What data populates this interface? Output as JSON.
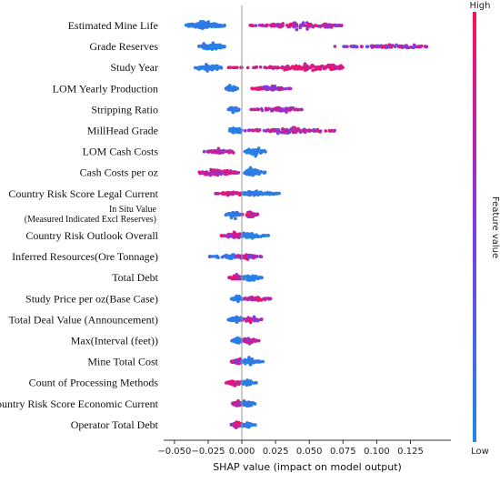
{
  "chart_data": {
    "type": "scatter",
    "subtype": "shap-beeswarm",
    "xlabel": "SHAP value (impact on model output)",
    "xlim": [
      -0.058,
      0.155
    ],
    "xticks": [
      -0.05,
      -0.025,
      0.0,
      0.025,
      0.05,
      0.075,
      0.1,
      0.125
    ],
    "xtick_labels": [
      "−0.050",
      "−0.025",
      "0.000",
      "0.025",
      "0.050",
      "0.075",
      "0.100",
      "0.125"
    ],
    "colorbar": {
      "label": "Feature value",
      "high_label": "High",
      "low_label": "Low",
      "low_color": "#1e88e5",
      "high_color": "#ff0d57"
    },
    "features": [
      {
        "name": "Estimated Mine Life",
        "clusters": [
          {
            "min": -0.042,
            "max": -0.012,
            "center": -0.028,
            "n": 110,
            "lo": 0.0,
            "hi": 0.15,
            "spread": 0.5
          },
          {
            "min": 0.005,
            "max": 0.075,
            "center": 0.045,
            "n": 120,
            "lo": 0.45,
            "hi": 1.0,
            "spread": 0.32
          }
        ]
      },
      {
        "name": "Grade Reserves",
        "clusters": [
          {
            "min": -0.032,
            "max": -0.012,
            "center": -0.022,
            "n": 80,
            "lo": 0.0,
            "hi": 0.15,
            "spread": 0.45
          },
          {
            "min": 0.065,
            "max": 0.137,
            "center": 0.115,
            "n": 90,
            "lo": 0.35,
            "hi": 1.0,
            "spread": 0.22
          }
        ]
      },
      {
        "name": "Study Year",
        "clusters": [
          {
            "min": -0.035,
            "max": -0.015,
            "center": -0.025,
            "n": 90,
            "lo": 0.0,
            "hi": 0.15,
            "spread": 0.45
          },
          {
            "min": -0.01,
            "max": 0.075,
            "center": 0.055,
            "n": 140,
            "lo": 0.7,
            "hi": 1.0,
            "spread": 0.4
          }
        ]
      },
      {
        "name": "LOM Yearly Production",
        "clusters": [
          {
            "min": -0.012,
            "max": -0.003,
            "center": -0.008,
            "n": 45,
            "lo": 0.0,
            "hi": 0.15,
            "spread": 0.4
          },
          {
            "min": 0.007,
            "max": 0.037,
            "center": 0.02,
            "n": 70,
            "lo": 0.4,
            "hi": 1.0,
            "spread": 0.3
          }
        ]
      },
      {
        "name": "Stripping Ratio",
        "clusters": [
          {
            "min": -0.01,
            "max": -0.002,
            "center": -0.006,
            "n": 45,
            "lo": 0.0,
            "hi": 0.15,
            "spread": 0.4
          },
          {
            "min": 0.005,
            "max": 0.046,
            "center": 0.03,
            "n": 70,
            "lo": 0.5,
            "hi": 1.0,
            "spread": 0.3
          }
        ]
      },
      {
        "name": "MillHead Grade",
        "clusters": [
          {
            "min": -0.01,
            "max": 0.0,
            "center": -0.005,
            "n": 50,
            "lo": 0.0,
            "hi": 0.15,
            "spread": 0.4
          },
          {
            "min": 0.002,
            "max": 0.07,
            "center": 0.035,
            "n": 120,
            "lo": 0.3,
            "hi": 1.0,
            "spread": 0.32
          }
        ]
      },
      {
        "name": "LOM Cash Costs",
        "clusters": [
          {
            "min": -0.028,
            "max": -0.006,
            "center": -0.015,
            "n": 55,
            "lo": 0.5,
            "hi": 1.0,
            "spread": 0.3
          },
          {
            "min": 0.002,
            "max": 0.018,
            "center": 0.01,
            "n": 70,
            "lo": 0.0,
            "hi": 0.15,
            "spread": 0.45
          }
        ]
      },
      {
        "name": "Cash Costs per oz",
        "clusters": [
          {
            "min": -0.033,
            "max": -0.002,
            "center": -0.018,
            "n": 80,
            "lo": 0.55,
            "hi": 1.0,
            "spread": 0.35
          },
          {
            "min": 0.002,
            "max": 0.018,
            "center": 0.008,
            "n": 75,
            "lo": 0.0,
            "hi": 0.15,
            "spread": 0.45
          }
        ]
      },
      {
        "name": "Country Risk Score Legal Current",
        "clusters": [
          {
            "min": -0.022,
            "max": 0.0,
            "center": -0.008,
            "n": 40,
            "lo": 0.7,
            "hi": 1.0,
            "spread": 0.25
          },
          {
            "min": 0.0,
            "max": 0.028,
            "center": 0.012,
            "n": 70,
            "lo": 0.0,
            "hi": 0.15,
            "spread": 0.35
          }
        ]
      },
      {
        "name": "In Situ Value (Measured Indicated Excl Reserves)",
        "label_lines": [
          "In Situ Value",
          "(Measured Indicated Excl Reserves)"
        ],
        "clusters": [
          {
            "min": -0.012,
            "max": 0.0,
            "center": -0.006,
            "n": 45,
            "lo": 0.0,
            "hi": 0.2,
            "spread": 0.45
          },
          {
            "min": 0.0,
            "max": 0.012,
            "center": 0.006,
            "n": 45,
            "lo": 0.5,
            "hi": 1.0,
            "spread": 0.45
          }
        ]
      },
      {
        "name": "Country Risk Outlook Overall",
        "clusters": [
          {
            "min": -0.016,
            "max": 0.0,
            "center": -0.005,
            "n": 55,
            "lo": 0.4,
            "hi": 1.0,
            "spread": 0.4
          },
          {
            "min": 0.0,
            "max": 0.02,
            "center": 0.006,
            "n": 60,
            "lo": 0.0,
            "hi": 0.15,
            "spread": 0.4
          }
        ]
      },
      {
        "name": "Inferred Resources(Ore Tonnage)",
        "clusters": [
          {
            "min": -0.025,
            "max": 0.0,
            "center": -0.008,
            "n": 55,
            "lo": 0.0,
            "hi": 0.25,
            "spread": 0.3
          },
          {
            "min": -0.005,
            "max": 0.015,
            "center": 0.004,
            "n": 50,
            "lo": 0.45,
            "hi": 1.0,
            "spread": 0.35
          }
        ]
      },
      {
        "name": "Total Debt",
        "clusters": [
          {
            "min": -0.01,
            "max": 0.0,
            "center": -0.004,
            "n": 40,
            "lo": 0.55,
            "hi": 1.0,
            "spread": 0.4
          },
          {
            "min": 0.0,
            "max": 0.016,
            "center": 0.006,
            "n": 50,
            "lo": 0.0,
            "hi": 0.15,
            "spread": 0.4
          }
        ]
      },
      {
        "name": "Study Price per oz(Base Case)",
        "clusters": [
          {
            "min": -0.008,
            "max": 0.0,
            "center": -0.003,
            "n": 40,
            "lo": 0.0,
            "hi": 0.15,
            "spread": 0.4
          },
          {
            "min": 0.0,
            "max": 0.022,
            "center": 0.01,
            "n": 45,
            "lo": 0.5,
            "hi": 1.0,
            "spread": 0.32
          }
        ]
      },
      {
        "name": "Total Deal Value (Announcement)",
        "clusters": [
          {
            "min": -0.01,
            "max": 0.0,
            "center": -0.004,
            "n": 45,
            "lo": 0.0,
            "hi": 0.2,
            "spread": 0.4
          },
          {
            "min": 0.0,
            "max": 0.016,
            "center": 0.006,
            "n": 40,
            "lo": 0.4,
            "hi": 1.0,
            "spread": 0.35
          }
        ]
      },
      {
        "name": "Max(Interval (feet))",
        "clusters": [
          {
            "min": -0.008,
            "max": 0.0,
            "center": -0.003,
            "n": 40,
            "lo": 0.0,
            "hi": 0.15,
            "spread": 0.4
          },
          {
            "min": 0.0,
            "max": 0.015,
            "center": 0.006,
            "n": 40,
            "lo": 0.5,
            "hi": 1.0,
            "spread": 0.35
          }
        ]
      },
      {
        "name": "Mine Total Cost",
        "clusters": [
          {
            "min": -0.01,
            "max": 0.0,
            "center": -0.003,
            "n": 40,
            "lo": 0.45,
            "hi": 1.0,
            "spread": 0.35
          },
          {
            "min": 0.0,
            "max": 0.016,
            "center": 0.005,
            "n": 50,
            "lo": 0.0,
            "hi": 0.15,
            "spread": 0.4
          }
        ]
      },
      {
        "name": "Count of Processing Methods",
        "clusters": [
          {
            "min": -0.012,
            "max": 0.0,
            "center": -0.005,
            "n": 40,
            "lo": 0.55,
            "hi": 1.0,
            "spread": 0.35
          },
          {
            "min": 0.0,
            "max": 0.012,
            "center": 0.004,
            "n": 40,
            "lo": 0.0,
            "hi": 0.15,
            "spread": 0.4
          }
        ]
      },
      {
        "name": "Country Risk Score Economic Current",
        "clusters": [
          {
            "min": -0.008,
            "max": 0.0,
            "center": -0.003,
            "n": 45,
            "lo": 0.45,
            "hi": 1.0,
            "spread": 0.45
          },
          {
            "min": 0.0,
            "max": 0.01,
            "center": 0.004,
            "n": 45,
            "lo": 0.0,
            "hi": 0.2,
            "spread": 0.45
          }
        ]
      },
      {
        "name": "Operator Total Debt",
        "clusters": [
          {
            "min": -0.008,
            "max": 0.0,
            "center": -0.003,
            "n": 40,
            "lo": 0.45,
            "hi": 1.0,
            "spread": 0.4
          },
          {
            "min": 0.0,
            "max": 0.01,
            "center": 0.004,
            "n": 45,
            "lo": 0.0,
            "hi": 0.2,
            "spread": 0.4
          }
        ]
      }
    ]
  }
}
